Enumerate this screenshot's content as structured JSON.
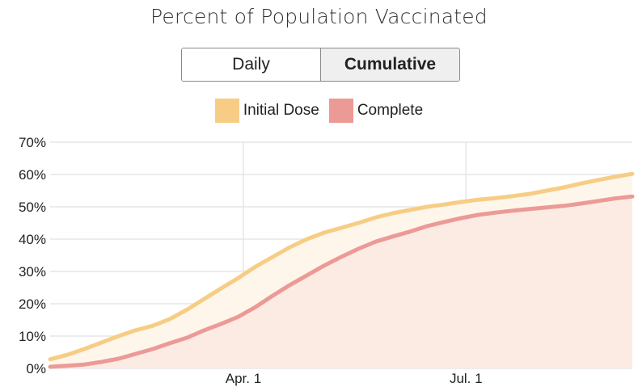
{
  "title": "Percent of Population Vaccinated",
  "toggle": {
    "options": [
      "Daily",
      "Cumulative"
    ],
    "selected": "Cumulative"
  },
  "colors": {
    "initial_line": "#f7cd85",
    "initial_fill": "#fef6ea",
    "complete_line": "#ec9a96",
    "complete_fill": "#fcebe3",
    "grid": "#e6e6e6"
  },
  "chart_data": {
    "type": "area",
    "title": "Percent of Population Vaccinated",
    "legend_position": "top-center",
    "grid": true,
    "y_ticks": [
      "0%",
      "10%",
      "20%",
      "30%",
      "40%",
      "50%",
      "60%",
      "70%"
    ],
    "ylim": [
      0,
      70
    ],
    "x_ticks": [
      {
        "date": "2021-04-01",
        "label": "Apr. 1"
      },
      {
        "date": "2021-07-01",
        "label": "Jul. 1"
      }
    ],
    "xlim": [
      "2021-01-12",
      "2021-09-07"
    ],
    "series": [
      {
        "name": "Initial Dose",
        "points": [
          [
            "2021-01-12",
            2.8
          ],
          [
            "2021-01-19",
            4.2
          ],
          [
            "2021-01-26",
            6.0
          ],
          [
            "2021-02-02",
            8.0
          ],
          [
            "2021-02-09",
            10.0
          ],
          [
            "2021-02-16",
            11.8
          ],
          [
            "2021-02-23",
            13.2
          ],
          [
            "2021-03-02",
            15.3
          ],
          [
            "2021-03-09",
            18.2
          ],
          [
            "2021-03-16",
            21.5
          ],
          [
            "2021-03-23",
            24.8
          ],
          [
            "2021-03-30",
            28.0
          ],
          [
            "2021-04-06",
            31.5
          ],
          [
            "2021-04-13",
            34.5
          ],
          [
            "2021-04-20",
            37.5
          ],
          [
            "2021-04-27",
            40.0
          ],
          [
            "2021-05-04",
            42.0
          ],
          [
            "2021-05-11",
            43.5
          ],
          [
            "2021-05-18",
            45.0
          ],
          [
            "2021-05-25",
            46.7
          ],
          [
            "2021-06-01",
            48.0
          ],
          [
            "2021-06-08",
            49.0
          ],
          [
            "2021-06-15",
            50.0
          ],
          [
            "2021-06-22",
            50.7
          ],
          [
            "2021-06-29",
            51.5
          ],
          [
            "2021-07-06",
            52.2
          ],
          [
            "2021-07-13",
            52.7
          ],
          [
            "2021-07-20",
            53.3
          ],
          [
            "2021-07-27",
            54.0
          ],
          [
            "2021-08-03",
            55.0
          ],
          [
            "2021-08-10",
            56.0
          ],
          [
            "2021-08-17",
            57.2
          ],
          [
            "2021-08-24",
            58.3
          ],
          [
            "2021-08-31",
            59.3
          ],
          [
            "2021-09-07",
            60.2
          ]
        ]
      },
      {
        "name": "Complete",
        "points": [
          [
            "2021-01-12",
            0.5
          ],
          [
            "2021-01-19",
            0.8
          ],
          [
            "2021-01-26",
            1.2
          ],
          [
            "2021-02-02",
            2.0
          ],
          [
            "2021-02-09",
            3.0
          ],
          [
            "2021-02-16",
            4.5
          ],
          [
            "2021-02-23",
            6.0
          ],
          [
            "2021-03-02",
            7.8
          ],
          [
            "2021-03-09",
            9.5
          ],
          [
            "2021-03-16",
            11.8
          ],
          [
            "2021-03-23",
            13.8
          ],
          [
            "2021-03-30",
            16.0
          ],
          [
            "2021-04-06",
            19.0
          ],
          [
            "2021-04-13",
            22.5
          ],
          [
            "2021-04-20",
            25.8
          ],
          [
            "2021-04-27",
            28.8
          ],
          [
            "2021-05-04",
            31.8
          ],
          [
            "2021-05-11",
            34.5
          ],
          [
            "2021-05-18",
            37.0
          ],
          [
            "2021-05-25",
            39.2
          ],
          [
            "2021-06-01",
            40.8
          ],
          [
            "2021-06-08",
            42.3
          ],
          [
            "2021-06-15",
            44.0
          ],
          [
            "2021-06-22",
            45.3
          ],
          [
            "2021-06-29",
            46.5
          ],
          [
            "2021-07-06",
            47.5
          ],
          [
            "2021-07-13",
            48.2
          ],
          [
            "2021-07-20",
            48.8
          ],
          [
            "2021-07-27",
            49.3
          ],
          [
            "2021-08-03",
            49.8
          ],
          [
            "2021-08-10",
            50.3
          ],
          [
            "2021-08-17",
            51.0
          ],
          [
            "2021-08-24",
            51.8
          ],
          [
            "2021-08-31",
            52.6
          ],
          [
            "2021-09-07",
            53.2
          ]
        ]
      }
    ]
  }
}
